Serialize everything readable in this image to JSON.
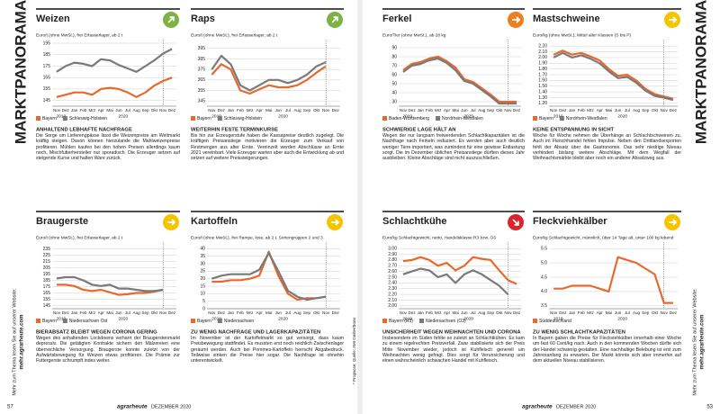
{
  "chart_data": [
    {
      "type": "line",
      "title": "Weizen",
      "subtitle": "Euro/t (ohne MwSt.), frei Erfasserlager, ab 2 t",
      "trend": "up",
      "trend_color": "#7cb342",
      "categories": [
        "Nov",
        "Dez",
        "Jan",
        "Feb",
        "Mrz",
        "Apr",
        "Mai",
        "Jun",
        "Jul",
        "Aug",
        "Sep",
        "Okt",
        "Nov",
        "Dez"
      ],
      "years": [
        "2019",
        "2020"
      ],
      "ylim": [
        140,
        195
      ],
      "yticks": [
        145,
        155,
        165,
        175,
        185,
        195
      ],
      "grid": true,
      "series": [
        {
          "name": "Bayern",
          "color": "#e8692c",
          "values": [
            148,
            150,
            152,
            152,
            150,
            155,
            156,
            155,
            152,
            148,
            152,
            158,
            162,
            165
          ]
        },
        {
          "name": "Schleswig-Holstein",
          "color": "#7a7a7a",
          "values": [
            170,
            175,
            178,
            177,
            175,
            181,
            180,
            176,
            173,
            170,
            175,
            180,
            186,
            190
          ]
        }
      ],
      "heading": "ANHALTEND LEBHAFTE NACHFRAGE",
      "text": "Die Sorge um Lieferengpässe lässt die Weizenpreise am Weltmarkt kräftig steigen. Davon können hierzulande die Mahlweizenpreise profitieren. Mühlen kaufen bei den hohen Preisen allerdings kaum noch, Mischfutterhersteller nur sporadisch. Die Erzeuger setzen auf steigende Kurse und halten Ware zurück."
    },
    {
      "type": "line",
      "title": "Raps",
      "subtitle": "Euro/t (ohne MwSt.), frei Erfasserlager, ab 2 t",
      "trend": "up",
      "trend_color": "#7cb342",
      "categories": [
        "Nov",
        "Dez",
        "Jan",
        "Feb",
        "Mrz",
        "Apr",
        "Mai",
        "Jun",
        "Jul",
        "Aug",
        "Sep",
        "Okt",
        "Nov",
        "Dez"
      ],
      "years": [
        "2019",
        "2020"
      ],
      "ylim": [
        340,
        400
      ],
      "yticks": [
        345,
        355,
        365,
        375,
        385,
        395
      ],
      "grid": true,
      "series": [
        {
          "name": "Bayern",
          "color": "#e8692c",
          "values": [
            370,
            380,
            375,
            355,
            352,
            356,
            360,
            358,
            358,
            360,
            365,
            372,
            378,
            null
          ]
        },
        {
          "name": "Schleswig-Holstein",
          "color": "#7a7a7a",
          "values": [
            375,
            388,
            380,
            360,
            355,
            360,
            365,
            365,
            362,
            365,
            370,
            378,
            382,
            null
          ]
        }
      ],
      "heading": "WEITERHIN FESTE TERMINKURSE",
      "text": "Bis hin zur Erzeugerstufe haben die Kassapreise deutlich zugelegt. Die kräftigen Preisanstiege motivieren die Erzeuger zum Verkauf von Restmengen aus alter Ernte. Vereinzelt werden Abschlüsse an Ernte 2021 vereinbart. Viele Erzeuger warten aber auch die Entwicklung ab und setzen auf weitere Preissteigerungen."
    },
    {
      "type": "line",
      "title": "Ferkel",
      "subtitle": "Euro/Tier (ohne MwSt.), ab 28 kg",
      "trend": "right",
      "trend_color": "#ef7d22",
      "categories": [
        "Nov",
        "Dez",
        "Jan",
        "Feb",
        "Mrz",
        "Apr",
        "Mai",
        "Jun",
        "Jul",
        "Aug",
        "Sep",
        "Okt",
        "Nov",
        "Dez"
      ],
      "years": [
        "2019",
        "2020"
      ],
      "ylim": [
        25,
        95
      ],
      "yticks": [
        30,
        40,
        50,
        60,
        70,
        80,
        90
      ],
      "grid": true,
      "series": [
        {
          "name": "Baden-Württemberg",
          "color": "#e8692c",
          "values": [
            65,
            72,
            74,
            78,
            80,
            75,
            68,
            55,
            52,
            45,
            38,
            30,
            30,
            30
          ]
        },
        {
          "name": "Nordrhein-Westfalen",
          "color": "#7a7a7a",
          "values": [
            63,
            70,
            72,
            76,
            78,
            73,
            65,
            53,
            50,
            43,
            36,
            28,
            28,
            28
          ]
        }
      ],
      "heading": "SCHWIERIGE LAGE HÄLT AN",
      "text": "Wegen der nur langsam freiwerdenden Schlachtkapazitäten ist die Nachfrage nach Ferkeln reduziert. Es werden aber auch deutlich weniger Tiere importiert, was zumindest für eine gewisse Entlastung sorgt. Die im Dezember üblichen Preisanstiege dürften dieses Jahr ausbleiben. Kleine Abschläge sind nicht auszuschließen."
    },
    {
      "type": "line",
      "title": "Mastschweine",
      "subtitle": "Euro/kg (ohne MwSt.), Mittel aller Klassen (S bis P)",
      "trend": "right",
      "trend_color": "#f5c400",
      "categories": [
        "Nov",
        "Dez",
        "Jan",
        "Feb",
        "Mrz",
        "Apr",
        "Mai",
        "Jun",
        "Jul",
        "Aug",
        "Sep",
        "Okt",
        "Nov",
        "Dez"
      ],
      "years": [
        "2019",
        "2020"
      ],
      "ylim": [
        1.15,
        2.25
      ],
      "yticks": [
        {
          "value": 1.2,
          "label": "1.20"
        },
        {
          "value": 1.3,
          "label": "1.30"
        },
        {
          "value": 1.4,
          "label": "1.40"
        },
        {
          "value": 1.5,
          "label": "1.50"
        },
        {
          "value": 1.6,
          "label": "1.60"
        },
        {
          "value": 1.7,
          "label": "1.70"
        },
        {
          "value": 1.8,
          "label": "1.80"
        },
        {
          "value": 1.9,
          "label": "1.90"
        },
        {
          "value": 2.0,
          "label": "2.00"
        },
        {
          "value": 2.1,
          "label": "2.10"
        },
        {
          "value": 2.2,
          "label": "2.20"
        }
      ],
      "grid": true,
      "series": [
        {
          "name": "Bayern",
          "color": "#e8692c",
          "values": [
            2.05,
            2.12,
            2.05,
            2.08,
            2.02,
            1.95,
            1.8,
            1.68,
            1.7,
            1.6,
            1.45,
            1.36,
            1.32,
            1.28
          ]
        },
        {
          "name": "Nordrhein-Westfalen",
          "color": "#7a7a7a",
          "values": [
            2.0,
            2.08,
            2.0,
            2.04,
            1.98,
            1.9,
            1.76,
            1.64,
            1.66,
            1.56,
            1.42,
            1.33,
            1.3,
            1.26
          ]
        }
      ],
      "heading": "KEINE ENTSPANNUNG IN SICHT",
      "text": "Woche für Woche nehmen die Überhänge an Schlachtschweinen zu. Auch im Fleischhandel fehlen Impulse. Neben den Drittlandsexporten fehlt der Absatz über die Gastronomie. Das sehr niedrige Niveau verhindert bislang weitere Abschläge. Mit dem Wegfall der Weihnachtsmärkte bleibt aber noch ein anderer Absatzweg aus."
    },
    {
      "type": "line",
      "title": "Braugerste",
      "subtitle": "Euro/t (ohne MwSt.), frei Erfasserlager, ab 2 t",
      "trend": "right",
      "trend_color": "#f5c400",
      "categories": [
        "Nov",
        "Dez",
        "Jan",
        "Feb",
        "Mrz",
        "Apr",
        "Mai",
        "Jun",
        "Jul",
        "Aug",
        "Sep",
        "Okt",
        "Nov",
        "Dez"
      ],
      "years": [
        "2019",
        "2020"
      ],
      "ylim": [
        140,
        240
      ],
      "yticks": [
        145,
        155,
        165,
        175,
        185,
        195,
        205,
        215,
        225,
        235
      ],
      "grid": true,
      "series": [
        {
          "name": "Bayern",
          "color": "#e8692c",
          "values": [
            178,
            178,
            176,
            170,
            168,
            170,
            166,
            162,
            163,
            165,
            165,
            167,
            170,
            null
          ]
        },
        {
          "name": "Niedersachsen Ost",
          "color": "#7a7a7a",
          "values": [
            188,
            190,
            190,
            185,
            178,
            176,
            178,
            172,
            172,
            170,
            168,
            168,
            170,
            null
          ]
        }
      ],
      "heading": "BIERABSATZ BLEIBT WEGEN CORONA GERING",
      "text": "Wegen des anhaltenden Lockdowns verharrt der Braugerstenmarkt depressiv. Die getätigten Kontrakte sichern den Mälzereien eine überreichliche Versorgung. Braugerste konnte zuletzt von der Aufwärtsbewegung für Weizen etwas profitieren. Die Prämie zur Futtergerste schrumpft indes weiter."
    },
    {
      "type": "line",
      "title": "Kartoffeln",
      "subtitle": "Euro/t (ohne MwSt.), frei Rampe, lose, ab 2 t, Sortengruppen 2 und 3",
      "trend": "right",
      "trend_color": "#f5c400",
      "categories": [
        "Nov",
        "Dez",
        "Jan",
        "Feb",
        "Mrz",
        "Apr",
        "Mai",
        "Jun",
        "Jul",
        "Aug",
        "Sep",
        "Okt",
        "Nov",
        "Dez"
      ],
      "years": [
        "2019",
        "2020"
      ],
      "ylim": [
        0,
        42
      ],
      "yticks": [
        0,
        5,
        10,
        15,
        20,
        25,
        30,
        35,
        40
      ],
      "grid": true,
      "series": [
        {
          "name": "Bayern",
          "color": "#e8692c",
          "values": [
            18,
            18,
            19,
            19,
            20,
            22,
            38,
            22,
            10,
            6,
            7,
            7,
            8,
            null
          ]
        },
        {
          "name": "Niedersachsen",
          "color": "#7a7a7a",
          "values": [
            20,
            22,
            23,
            23,
            23,
            26,
            37,
            25,
            12,
            8,
            6,
            7,
            8,
            null
          ]
        }
      ],
      "heading": "ZU WENIG NACHFRAGE UND LAGERKAPAZITÄTEN",
      "text": "Im November ist der Kartoffelmarkt so gut versorgt, dass kaum Preisbewegung stattfindet. Es mussten erst noch reichlich Zwischenlager geräumt werden. Auch bei Pommes-Kartoffeln herrscht Abgabedruck. Teilweise sinken die Preise hier sogar. Die Nachfrage ist ohnehin unterentwickelt."
    },
    {
      "type": "line",
      "title": "Schlachtkühe",
      "subtitle": "Euro/kg Schlachtgewicht, netto, Handelsklasse R3 bzw. O3",
      "trend": "down",
      "trend_color": "#d9262b",
      "categories": [
        "Nov",
        "Dez",
        "Jan",
        "Feb",
        "Mrz",
        "Apr",
        "Mai",
        "Jun",
        "Jul",
        "Aug",
        "Sep",
        "Okt",
        "Nov",
        "Dez"
      ],
      "years": [
        "2019",
        "2020"
      ],
      "ylim": [
        1.95,
        3.05
      ],
      "yticks": [
        {
          "value": 2.0,
          "label": "2.00"
        },
        {
          "value": 2.1,
          "label": "2.10"
        },
        {
          "value": 2.2,
          "label": "2.20"
        },
        {
          "value": 2.3,
          "label": "2.30"
        },
        {
          "value": 2.4,
          "label": "2.40"
        },
        {
          "value": 2.5,
          "label": "2.50"
        },
        {
          "value": 2.6,
          "label": "2.60"
        },
        {
          "value": 2.7,
          "label": "2.70"
        },
        {
          "value": 2.8,
          "label": "2.80"
        },
        {
          "value": 2.9,
          "label": "2.90"
        },
        {
          "value": 3.0,
          "label": "3.00"
        }
      ],
      "grid": true,
      "series": [
        {
          "name": "Bayern (R3)",
          "color": "#e8692c",
          "values": [
            2.78,
            2.8,
            2.85,
            2.8,
            2.7,
            2.75,
            2.62,
            2.7,
            2.85,
            2.82,
            2.8,
            2.62,
            2.45,
            2.38
          ]
        },
        {
          "name": "Niedersachsen (O3)",
          "color": "#7a7a7a",
          "values": [
            2.55,
            2.6,
            2.65,
            2.62,
            2.5,
            2.55,
            2.4,
            2.55,
            2.62,
            2.55,
            2.45,
            2.35,
            2.2,
            null
          ]
        }
      ],
      "heading": "UNSICHERHEIT WEGEN WEIHNACHTEN UND CORONA",
      "text": "Insbesondere im Süden fehlte es zuletzt an Schlachtkühen. Es kam zu einem regelrechten Preisverfall. Zwar stabilisierte sich der Preis Mitte November wieder, jedoch ist Kuhfleisch generell um Weihnachten wenig gefragt. Dies sorgt für Verunsicherung und einen wahrscheinlich schwachen Handel mit Kuhfleisch."
    },
    {
      "type": "line",
      "title": "Fleckviehkälber",
      "subtitle": "Euro/kg Schlachtgewicht, männlich, über 14 Tage alt, unter 100 kg lebend",
      "trend": "right",
      "trend_color": "#f5c400",
      "categories": [
        "Nov",
        "Dez",
        "Jan",
        "Feb",
        "Mrz",
        "Apr",
        "Mai",
        "Jun",
        "Jul",
        "Aug",
        "Sep",
        "Okt",
        "Nov",
        "Dez"
      ],
      "years": [
        "2019",
        "2020"
      ],
      "ylim": [
        3.4,
        5.6
      ],
      "yticks": [
        3.5,
        {
          "value": 4.0,
          "label": "4.0"
        },
        4.5,
        {
          "value": 5.0,
          "label": "5.0"
        },
        5.5
      ],
      "grid": true,
      "series": [
        {
          "name": "Süddeutschland",
          "color": "#e8692c",
          "values": [
            4.1,
            4.1,
            4.2,
            4.2,
            4.2,
            4.1,
            4.0,
            5.2,
            5.1,
            5.0,
            4.8,
            4.6,
            3.6,
            3.6
          ]
        }
      ],
      "heading": "ZU WENIG SCHLACHTKAPAZITÄTEN",
      "text": "In Bayern gaben die Preise für Fleckviehkälber innerhalb einer Woche um fast 60 Cent/kg nach. Auch in den kommenden Wochen dürfte sich der Handel schwierig gestalten. Eine nachhaltige Belebung ist erst zum Jahresanfang zu erwarten. Der Markt könnte sich aber immerhin auf dem aktuellen Niveau stabilisieren."
    }
  ],
  "page": {
    "side_title": "MARKTPANORAMA",
    "side_note": "Mehr zum Thema lesen Sie auf unserer Website:",
    "side_url": "mehr.agrarheute.com",
    "page_left": "57",
    "page_right": "53",
    "brand": "agrarheute",
    "issue": "DEZEMBER 2020",
    "footnote": "* Prognose; Quelle: AMI GmbH/Bonn"
  }
}
